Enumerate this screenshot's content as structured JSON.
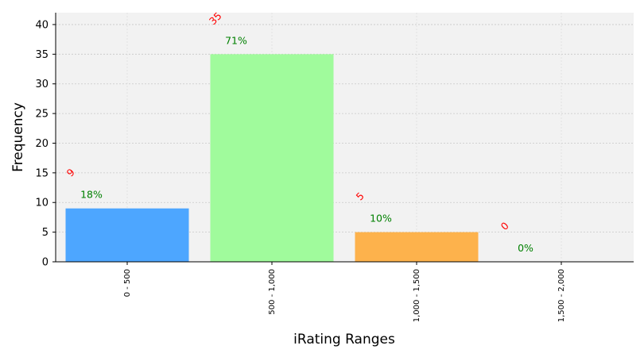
{
  "chart_data": {
    "type": "bar",
    "categories": [
      "0 - 500",
      "500 - 1,000",
      "1,000 - 1,500",
      "1,500 - 2,000"
    ],
    "values": [
      9,
      35,
      5,
      0
    ],
    "percent_labels": [
      "18%",
      "71%",
      "10%",
      "0%"
    ],
    "count_labels": [
      "9",
      "35",
      "5",
      "0"
    ],
    "bar_colors": [
      "#4da6ff",
      "#a0fb9c",
      "#fdb24c",
      "#f2f2f2"
    ],
    "xlabel": "iRating Ranges",
    "ylabel": "Frequency",
    "ylim": [
      0,
      42
    ],
    "yticks": [
      "0",
      "5",
      "10",
      "15",
      "20",
      "25",
      "30",
      "35",
      "40"
    ],
    "grid": true,
    "plot_background": "#f2f2f2",
    "percent_label_color": "#008000",
    "count_label_color": "#ff0000"
  }
}
